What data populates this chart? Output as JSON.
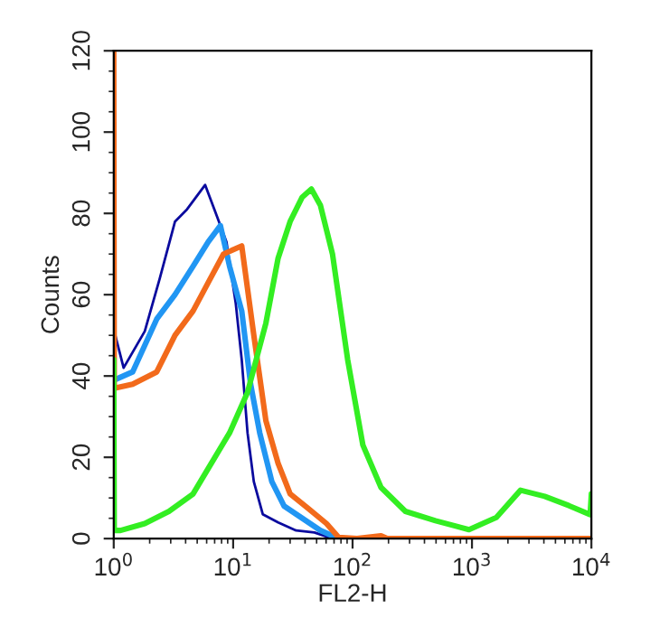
{
  "chart_data": {
    "type": "line",
    "xlabel": "FL2-H",
    "ylabel": "Counts",
    "log": "x",
    "grid": false,
    "legend": false,
    "marker": "none",
    "line_style": "solid",
    "xlim": [
      1,
      10000
    ],
    "xticks": [
      {
        "value": 1,
        "label": "10$^{0}$"
      },
      {
        "value": 10,
        "label": "10$^{1}$"
      },
      {
        "value": 100,
        "label": "10$^{2}$"
      },
      {
        "value": 1000,
        "label": "10$^{3}$"
      },
      {
        "value": 10000,
        "label": "10$^{4}$"
      }
    ],
    "ylim": [
      0,
      120
    ],
    "yticks": [
      0,
      20,
      40,
      60,
      80,
      100,
      120
    ],
    "series": [
      {
        "color": "#0a0a9e",
        "x": [
          1.01,
          1.21,
          1.82,
          2.43,
          3.26,
          4.11,
          5.83,
          6.96,
          8.79,
          10.5,
          11.8,
          13.2,
          14.9,
          17.7,
          23.8,
          33.7,
          47.9,
          67.9
        ],
        "values": [
          51,
          42,
          51,
          64,
          78,
          81,
          87,
          81,
          73,
          58,
          44,
          26,
          14,
          6,
          4,
          2,
          1.5,
          0
        ]
      },
      {
        "color": "#2196f3",
        "x": [
          1.01,
          1.44,
          2.29,
          3.26,
          4.62,
          6.19,
          7.82,
          9.33,
          11.8,
          14.0,
          16.7,
          21.1,
          26.7,
          37.9,
          53.8,
          76.4
        ],
        "values": [
          39,
          41,
          54,
          60,
          67,
          73,
          77,
          67,
          56,
          38,
          26,
          14,
          8,
          5,
          2,
          0
        ]
      },
      {
        "color": "#f26a1b",
        "x": [
          1,
          1.01,
          1.44,
          2.29,
          3.26,
          4.62,
          6.19,
          8.3,
          11.8,
          14.9,
          18.8,
          23.8,
          30.0,
          42.6,
          60.5,
          76.4,
          109,
          173,
          195,
          10000
        ],
        "values": [
          120,
          37,
          38,
          41,
          50,
          56,
          63,
          70,
          72,
          50,
          29,
          18.5,
          11,
          7.4,
          3.7,
          0.3,
          0,
          0.7,
          0,
          0
        ]
      },
      {
        "color": "#33ee22",
        "x": [
          1,
          1.01,
          1.14,
          1.82,
          2.9,
          4.62,
          6.56,
          9.33,
          13.2,
          18.8,
          23.8,
          30.0,
          37.9,
          45.2,
          53.8,
          67.9,
          91.0,
          122,
          173,
          277,
          495,
          944,
          1600,
          2550,
          4060,
          6490,
          9770,
          10000
        ],
        "values": [
          44,
          2,
          2,
          3.7,
          6.7,
          11,
          18.5,
          26,
          36,
          53,
          69,
          78,
          84,
          86,
          82,
          70,
          44,
          23,
          12.6,
          6.7,
          4.4,
          2.2,
          5.2,
          11.9,
          10.4,
          8.1,
          5.9,
          11
        ]
      }
    ]
  }
}
